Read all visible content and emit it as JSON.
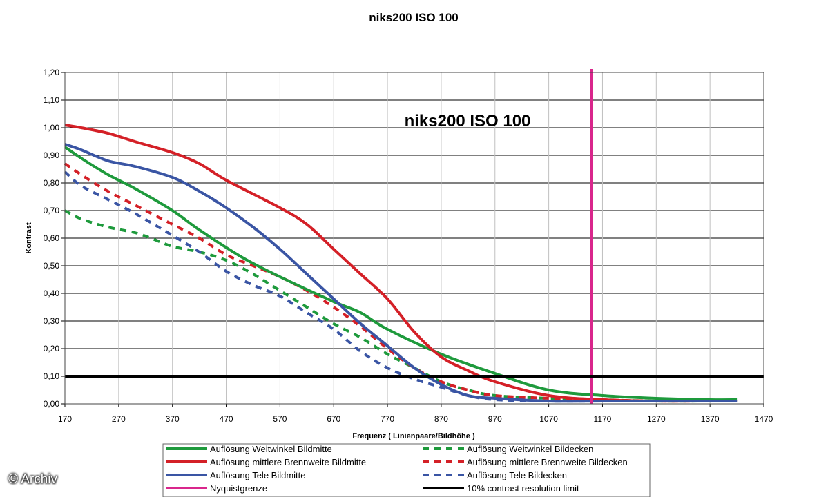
{
  "chart_data": {
    "type": "line",
    "title": "niks200 ISO 100",
    "inner_title": "niks200 ISO 100",
    "xlabel": "Frequenz ( Linienpaare/Bildhöhe )",
    "ylabel": "Kontrast",
    "xlim": [
      170,
      1470
    ],
    "ylim": [
      0,
      1.2
    ],
    "x_ticks": [
      "170",
      "270",
      "370",
      "470",
      "570",
      "670",
      "770",
      "870",
      "970",
      "1070",
      "1170",
      "1270",
      "1370",
      "1470"
    ],
    "y_ticks": [
      "0,00",
      "0,10",
      "0,20",
      "0,30",
      "0,40",
      "0,50",
      "0,60",
      "0,70",
      "0,80",
      "0,90",
      "1,00",
      "1,10",
      "1,20"
    ],
    "grid": true,
    "series": [
      {
        "name": "Auflösung Weitwinkel Bildmitte",
        "color": "#1e9a3c",
        "style": "solid",
        "x": [
          170,
          200,
          250,
          300,
          370,
          420,
          500,
          570,
          670,
          720,
          770,
          870,
          970,
          1070,
          1170,
          1270,
          1370,
          1420
        ],
        "y": [
          0.93,
          0.89,
          0.83,
          0.78,
          0.7,
          0.63,
          0.53,
          0.46,
          0.37,
          0.33,
          0.27,
          0.18,
          0.11,
          0.05,
          0.03,
          0.02,
          0.015,
          0.015
        ]
      },
      {
        "name": "Auflösung Weitwinkel Bildecken",
        "color": "#1e9a3c",
        "style": "dashed",
        "x": [
          170,
          200,
          250,
          300,
          330,
          370,
          420,
          470,
          520,
          570,
          620,
          670,
          720,
          770,
          820,
          870,
          920,
          970,
          1070,
          1170,
          1270,
          1370,
          1420
        ],
        "y": [
          0.7,
          0.67,
          0.64,
          0.62,
          0.6,
          0.57,
          0.55,
          0.52,
          0.47,
          0.41,
          0.35,
          0.29,
          0.24,
          0.18,
          0.13,
          0.08,
          0.05,
          0.03,
          0.02,
          0.015,
          0.01,
          0.01,
          0.01
        ]
      },
      {
        "name": "Auflösung mittlere Brennweite Bildmitte",
        "color": "#d42027",
        "style": "solid",
        "x": [
          170,
          200,
          250,
          300,
          370,
          420,
          470,
          570,
          620,
          670,
          720,
          770,
          820,
          870,
          920,
          970,
          1070,
          1170,
          1270,
          1370,
          1420
        ],
        "y": [
          1.01,
          1.0,
          0.98,
          0.95,
          0.91,
          0.87,
          0.81,
          0.71,
          0.65,
          0.56,
          0.47,
          0.38,
          0.26,
          0.17,
          0.12,
          0.08,
          0.03,
          0.015,
          0.01,
          0.01,
          0.01
        ]
      },
      {
        "name": "Auflösung mittlere Brennweite Bildecken",
        "color": "#d42027",
        "style": "dashed",
        "x": [
          170,
          200,
          250,
          300,
          370,
          420,
          470,
          520,
          570,
          620,
          670,
          720,
          770,
          820,
          870,
          920,
          970,
          1070,
          1170,
          1270,
          1370,
          1420
        ],
        "y": [
          0.87,
          0.83,
          0.77,
          0.72,
          0.65,
          0.6,
          0.54,
          0.5,
          0.46,
          0.41,
          0.35,
          0.28,
          0.2,
          0.13,
          0.08,
          0.05,
          0.03,
          0.02,
          0.015,
          0.01,
          0.01,
          0.01
        ]
      },
      {
        "name": "Auflösung Tele Bildmitte",
        "color": "#3a55a4",
        "style": "solid",
        "x": [
          170,
          200,
          250,
          300,
          370,
          420,
          470,
          520,
          570,
          620,
          670,
          720,
          770,
          820,
          870,
          920,
          970,
          1070,
          1170,
          1270,
          1370,
          1420
        ],
        "y": [
          0.94,
          0.92,
          0.88,
          0.86,
          0.82,
          0.77,
          0.71,
          0.64,
          0.56,
          0.47,
          0.38,
          0.29,
          0.21,
          0.13,
          0.07,
          0.03,
          0.02,
          0.01,
          0.01,
          0.01,
          0.01,
          0.01
        ]
      },
      {
        "name": "Auflösung Tele Bildecken",
        "color": "#3a55a4",
        "style": "dashed",
        "x": [
          170,
          200,
          250,
          300,
          370,
          420,
          470,
          520,
          570,
          620,
          670,
          720,
          770,
          820,
          870,
          920,
          970,
          1070,
          1170,
          1270,
          1370,
          1420
        ],
        "y": [
          0.84,
          0.79,
          0.74,
          0.69,
          0.61,
          0.55,
          0.48,
          0.43,
          0.39,
          0.33,
          0.27,
          0.19,
          0.13,
          0.09,
          0.06,
          0.03,
          0.015,
          0.01,
          0.01,
          0.01,
          0.01,
          0.01
        ]
      }
    ],
    "reference_lines": [
      {
        "name": "Nyquistgrenze",
        "color": "#d9268c",
        "orientation": "vertical",
        "value": 1150
      },
      {
        "name": "10% contrast resolution limit",
        "color": "#000000",
        "orientation": "horizontal",
        "value": 0.1
      }
    ],
    "legend": [
      {
        "label": "Auflösung Weitwinkel Bildmitte",
        "color": "#1e9a3c",
        "style": "solid"
      },
      {
        "label": "Auflösung Weitwinkel Bildecken",
        "color": "#1e9a3c",
        "style": "dashed"
      },
      {
        "label": "Auflösung mittlere Brennweite Bildmitte",
        "color": "#d42027",
        "style": "solid"
      },
      {
        "label": "Auflösung mittlere Brennweite Bildecken",
        "color": "#d42027",
        "style": "dashed"
      },
      {
        "label": "Auflösung Tele Bildmitte",
        "color": "#3a55a4",
        "style": "solid"
      },
      {
        "label": "Auflösung Tele Bildecken",
        "color": "#3a55a4",
        "style": "dashed"
      },
      {
        "label": "Nyquistgrenze",
        "color": "#d9268c",
        "style": "solid"
      },
      {
        "label": "10% contrast resolution limit",
        "color": "#000000",
        "style": "solid"
      }
    ],
    "legend_position": "bottom"
  },
  "watermark": "© Archiv"
}
